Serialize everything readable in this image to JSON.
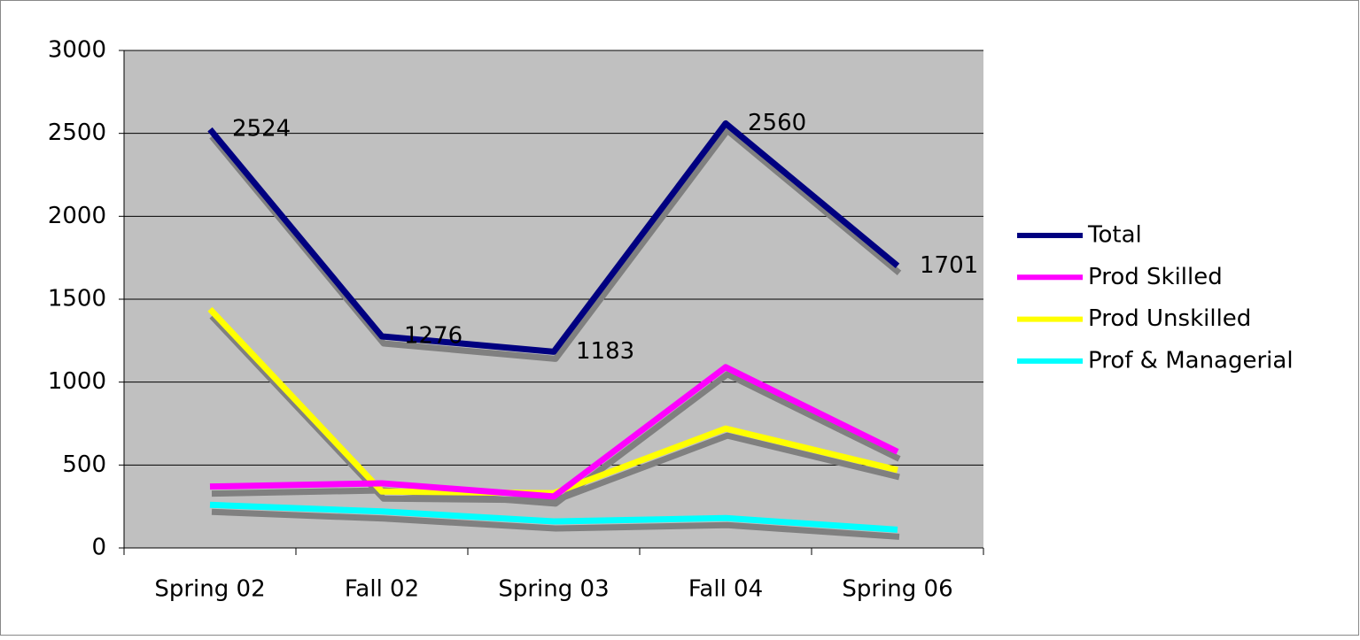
{
  "chart_data": {
    "type": "line",
    "categories": [
      "Spring 02",
      "Fall 02",
      "Spring 03",
      "Fall 04",
      "Spring 06"
    ],
    "series": [
      {
        "name": "Total",
        "color": "#000080",
        "values": [
          2524,
          1276,
          1183,
          2560,
          1701
        ],
        "data_labels": true
      },
      {
        "name": "Prod Skilled",
        "color": "#ff00ff",
        "values": [
          370,
          390,
          310,
          1090,
          580
        ]
      },
      {
        "name": "Prod Unskilled",
        "color": "#ffff00",
        "values": [
          1440,
          340,
          330,
          720,
          470
        ]
      },
      {
        "name": "Prof & Managerial",
        "color": "#00ffff",
        "values": [
          260,
          220,
          160,
          180,
          110
        ]
      }
    ],
    "ylim": [
      0,
      3000
    ],
    "yticks": [
      0,
      500,
      1000,
      1500,
      2000,
      2500,
      3000
    ],
    "grid": true,
    "legend": "right"
  }
}
